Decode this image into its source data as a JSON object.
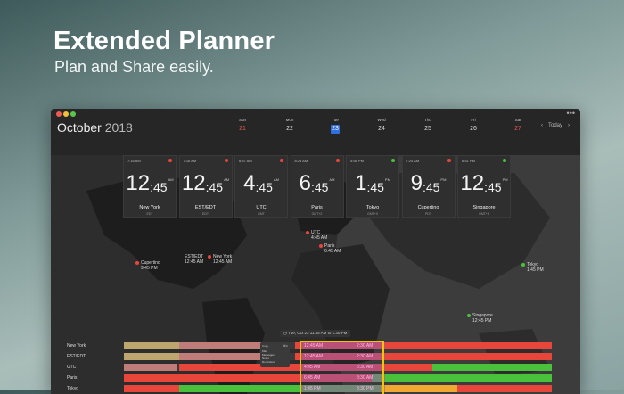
{
  "hero": {
    "title": "Extended Planner",
    "subtitle": "Plan and Share easily."
  },
  "window": {
    "month": "October",
    "year": "2018",
    "more": "•••"
  },
  "week": [
    {
      "name": "Sun",
      "date": "21",
      "weekend": true
    },
    {
      "name": "Mon",
      "date": "22"
    },
    {
      "name": "Tue",
      "date": "23",
      "selected": true
    },
    {
      "name": "Wed",
      "date": "24"
    },
    {
      "name": "Thu",
      "date": "25"
    },
    {
      "name": "Fri",
      "date": "26"
    },
    {
      "name": "Sat",
      "date": "27",
      "weekend": true
    }
  ],
  "nav": {
    "prev": "‹",
    "today": "Today",
    "next": "›"
  },
  "colors": {
    "accent": "#2f6fe0",
    "red": "#e8463a",
    "green": "#49c13a",
    "yellow": "#f5c400",
    "tan": "#bfa56e",
    "pink": "#c07c78",
    "orange": "#f0a830"
  },
  "clocks": [
    {
      "local": "7:16 AM",
      "hour": "12",
      "min": "45",
      "ampm": "AM",
      "city": "New York",
      "tz": "EDT",
      "status": "red"
    },
    {
      "local": "7:16 AM",
      "hour": "12",
      "min": "45",
      "ampm": "AM",
      "city": "EST/EDT",
      "tz": "EDT",
      "status": "red"
    },
    {
      "local": "6:57 AM",
      "hour": "4",
      "min": "45",
      "ampm": "AM",
      "city": "UTC",
      "tz": "GMT",
      "status": "red"
    },
    {
      "local": "8:23 AM",
      "hour": "6",
      "min": "45",
      "ampm": "AM",
      "city": "Paris",
      "tz": "GMT+2",
      "status": "red"
    },
    {
      "local": "4:56 PM",
      "hour": "1",
      "min": "45",
      "ampm": "PM",
      "city": "Tokyo",
      "tz": "GMT+9",
      "status": "green"
    },
    {
      "local": "7:24 AM",
      "hour": "9",
      "min": "45",
      "ampm": "PM",
      "city": "Cupertino",
      "tz": "PDT",
      "status": "red"
    },
    {
      "local": "6:51 PM",
      "hour": "12",
      "min": "45",
      "ampm": "PM",
      "city": "Singapore",
      "tz": "GMT+8",
      "status": "green"
    }
  ],
  "pins": [
    {
      "city": "Cupertino",
      "time": "9:45 PM",
      "status": "red"
    },
    {
      "city": "EST/EDT",
      "time": "12:45 AM",
      "status": "none"
    },
    {
      "city": "New York",
      "time": "12:45 AM",
      "status": "red"
    },
    {
      "city": "UTC",
      "time": "4:45 AM",
      "status": "red"
    },
    {
      "city": "Paris",
      "time": "6:45 AM",
      "status": "red"
    },
    {
      "city": "Tokyo",
      "time": "1:45 PM",
      "status": "green"
    },
    {
      "city": "Singapore",
      "time": "12:45 PM",
      "status": "green"
    }
  ],
  "banner": "Tue, Oct 23 11:45 AM to 1:30 PM",
  "popup": {
    "items": [
      "Copy",
      "Mail",
      "Messages",
      "Notes",
      "Reminders"
    ],
    "shortcut": "⌘C"
  },
  "timeline": [
    {
      "city": "New York",
      "start": "12:45 AM",
      "end": "2:30 AM"
    },
    {
      "city": "EST/EDT",
      "start": "12:45 AM",
      "end": "2:30 AM"
    },
    {
      "city": "UTC",
      "start": "4:45 AM",
      "end": "6:30 AM"
    },
    {
      "city": "Paris",
      "start": "6:45 AM",
      "end": "8:30 AM"
    },
    {
      "city": "Tokyo",
      "start": "1:45 PM",
      "end": "3:30 PM"
    }
  ]
}
